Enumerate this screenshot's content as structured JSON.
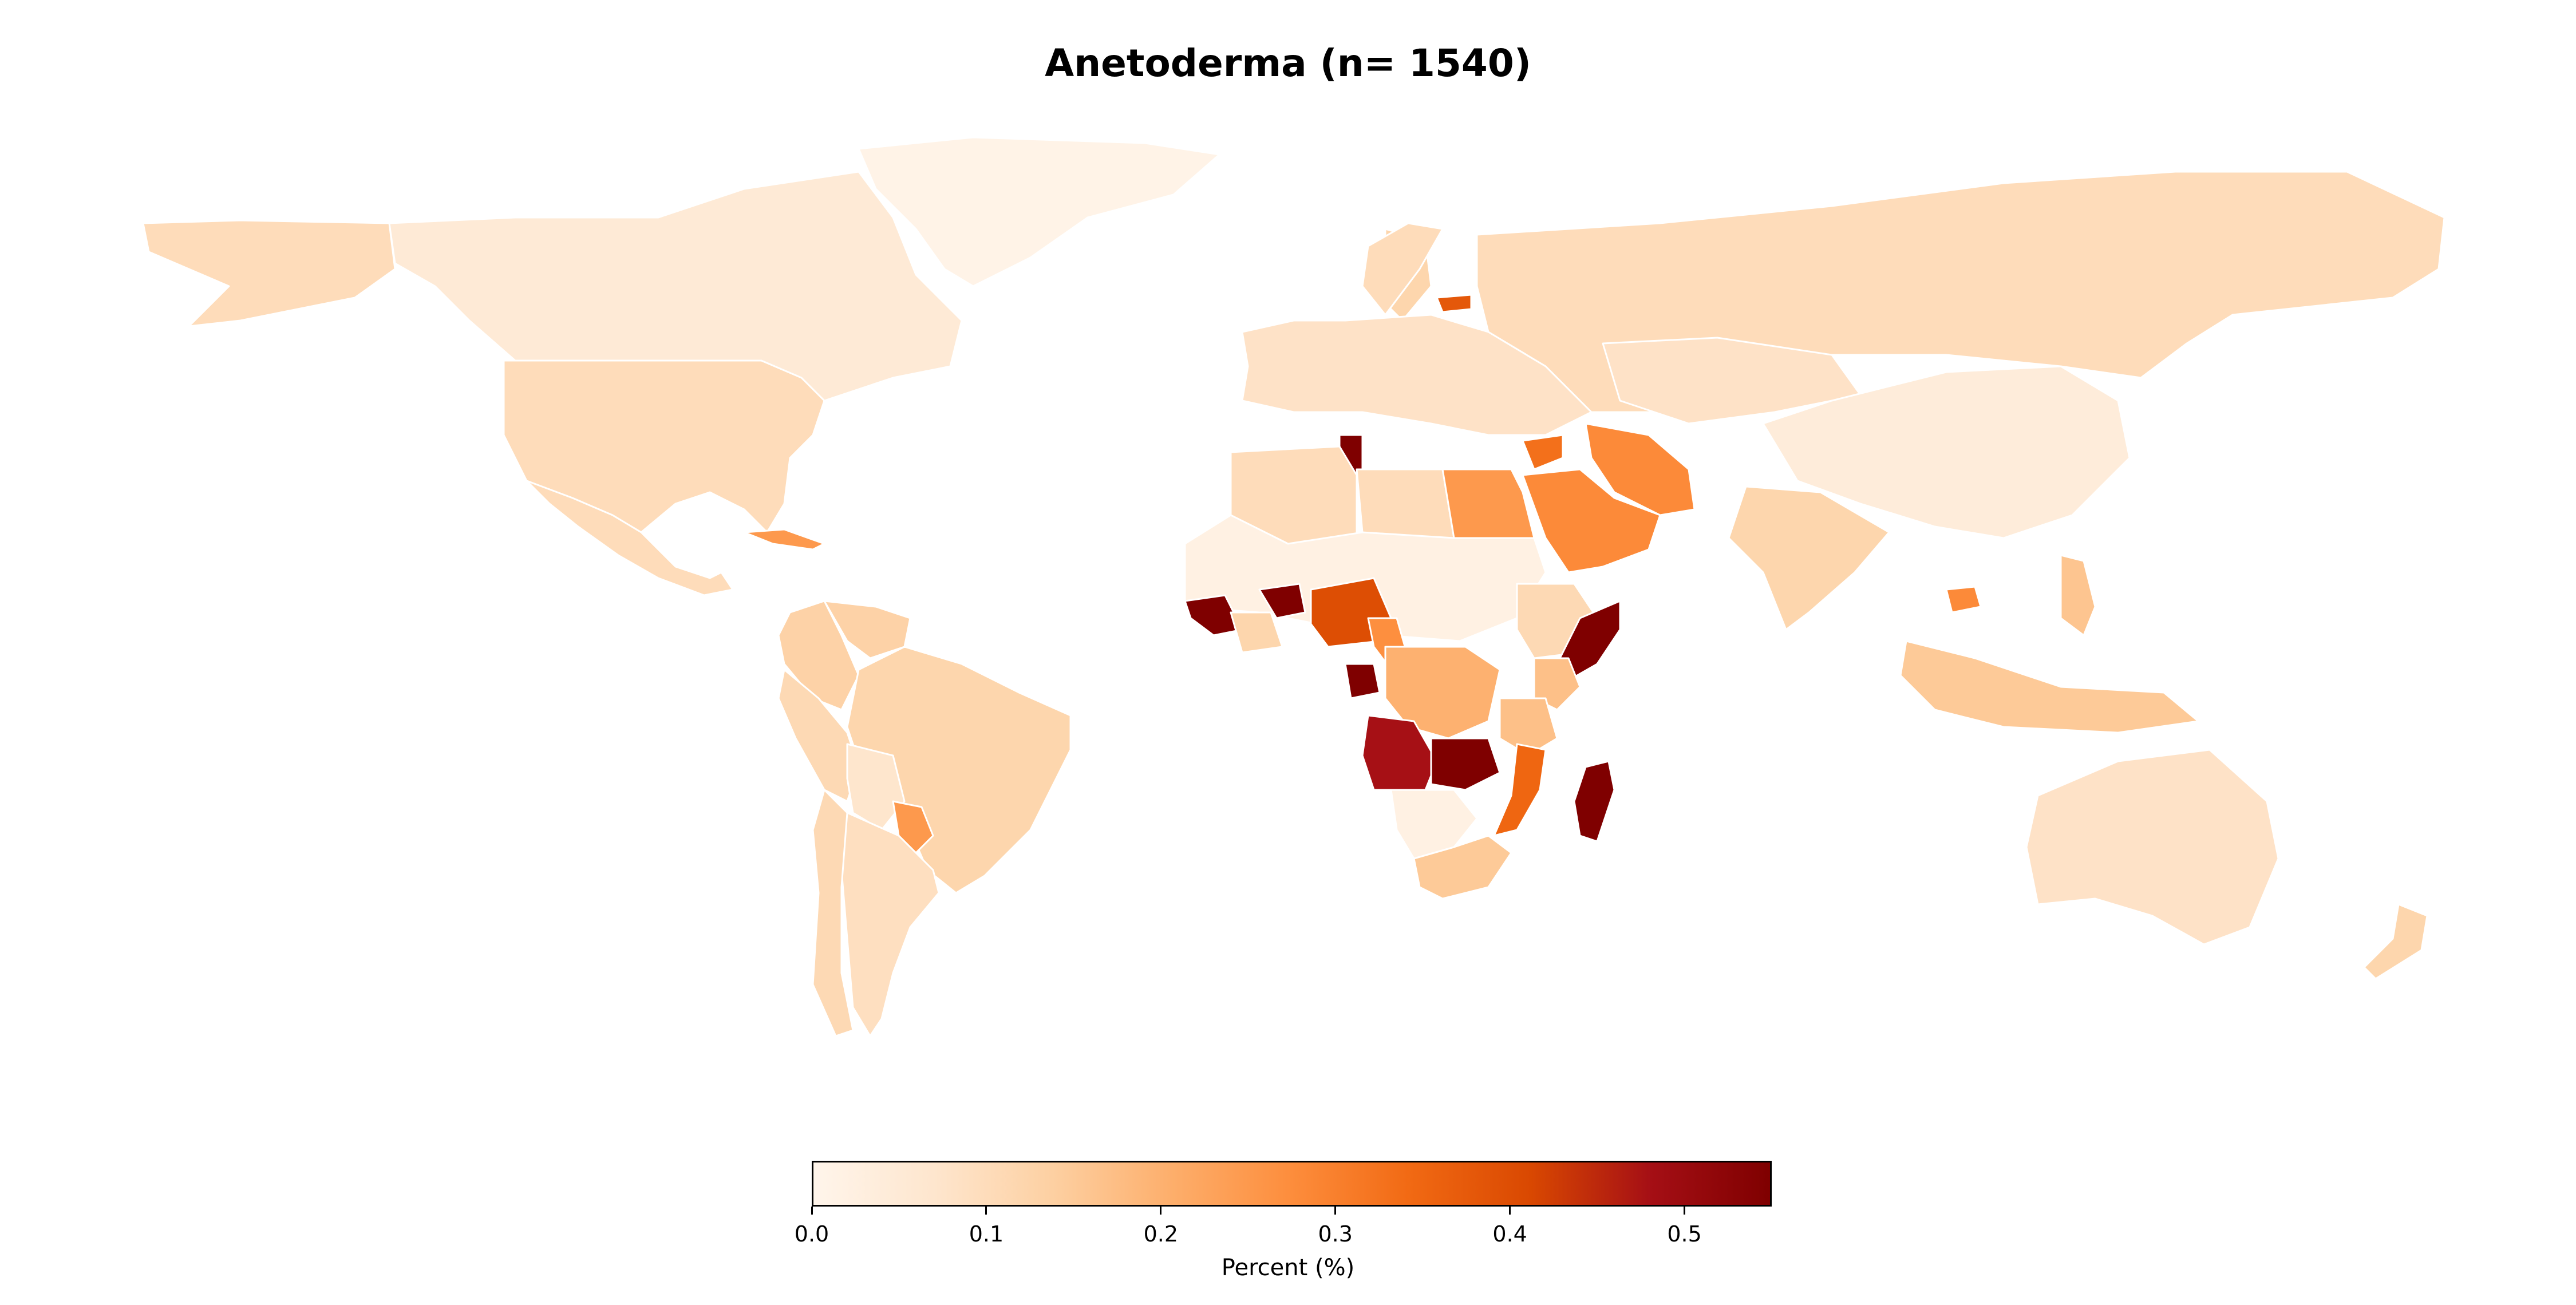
{
  "title": "Anetoderma (n= 1540)",
  "colorbar": {
    "label": "Percent (%)",
    "min": 0.0,
    "max": 0.55,
    "ticks": [
      "0.0",
      "0.1",
      "0.2",
      "0.3",
      "0.4",
      "0.5"
    ],
    "tick_values": [
      0.0,
      0.1,
      0.2,
      0.3,
      0.4,
      0.5
    ],
    "colormap": [
      "#fff5eb",
      "#fee6ce",
      "#fdd0a2",
      "#fdae6b",
      "#fd8d3c",
      "#f16913",
      "#d94801",
      "#a50f15",
      "#7f0000"
    ]
  },
  "chart_data": {
    "type": "choropleth",
    "value_unit": "Percent (%)",
    "vmin": 0.0,
    "vmax": 0.55,
    "regions": [
      {
        "name": "Greenland",
        "value": 0.01
      },
      {
        "name": "Canada",
        "value": 0.05
      },
      {
        "name": "Alaska",
        "value": 0.1
      },
      {
        "name": "United States",
        "value": 0.1
      },
      {
        "name": "Mexico",
        "value": 0.1
      },
      {
        "name": "Cuba",
        "value": 0.25
      },
      {
        "name": "Colombia",
        "value": 0.13
      },
      {
        "name": "Venezuela",
        "value": 0.13
      },
      {
        "name": "Brazil",
        "value": 0.12
      },
      {
        "name": "Peru",
        "value": 0.11
      },
      {
        "name": "Bolivia",
        "value": 0.07
      },
      {
        "name": "Paraguay",
        "value": 0.25
      },
      {
        "name": "Argentina",
        "value": 0.09
      },
      {
        "name": "Chile",
        "value": 0.11
      },
      {
        "name": "Russia",
        "value": 0.1
      },
      {
        "name": "Sweden",
        "value": 0.12
      },
      {
        "name": "Norway",
        "value": 0.1
      },
      {
        "name": "Lithuania",
        "value": 0.38
      },
      {
        "name": "Europe",
        "value": 0.08
      },
      {
        "name": "Tunisia",
        "value": 0.55
      },
      {
        "name": "Libya",
        "value": 0.1
      },
      {
        "name": "Algeria",
        "value": 0.1
      },
      {
        "name": "Egypt",
        "value": 0.25
      },
      {
        "name": "Syria",
        "value": 0.33
      },
      {
        "name": "Iran",
        "value": 0.28
      },
      {
        "name": "Saudi Arabia",
        "value": 0.28
      },
      {
        "name": "Kazakhstan",
        "value": 0.08
      },
      {
        "name": "China",
        "value": 0.04
      },
      {
        "name": "India",
        "value": 0.12
      },
      {
        "name": "Cambodia",
        "value": 0.28
      },
      {
        "name": "Philippines",
        "value": 0.16
      },
      {
        "name": "Indonesia",
        "value": 0.15
      },
      {
        "name": "Australia",
        "value": 0.08
      },
      {
        "name": "New Zealand",
        "value": 0.12
      },
      {
        "name": "Sahel",
        "value": 0.02
      },
      {
        "name": "Liberia",
        "value": 0.55
      },
      {
        "name": "Ghana",
        "value": 0.55
      },
      {
        "name": "Ivory Coast",
        "value": 0.12
      },
      {
        "name": "Nigeria",
        "value": 0.4
      },
      {
        "name": "Cameroon",
        "value": 0.27
      },
      {
        "name": "Gabon",
        "value": 0.55
      },
      {
        "name": "DR Congo",
        "value": 0.2
      },
      {
        "name": "Ethiopia",
        "value": 0.11
      },
      {
        "name": "Somalia",
        "value": 0.55
      },
      {
        "name": "Kenya",
        "value": 0.17
      },
      {
        "name": "Tanzania",
        "value": 0.17
      },
      {
        "name": "Angola",
        "value": 0.48
      },
      {
        "name": "Zambia",
        "value": 0.55
      },
      {
        "name": "Mozambique",
        "value": 0.35
      },
      {
        "name": "Madagascar",
        "value": 0.55
      },
      {
        "name": "Namibia/Botswana",
        "value": 0.02
      },
      {
        "name": "South Africa",
        "value": 0.15
      }
    ]
  }
}
